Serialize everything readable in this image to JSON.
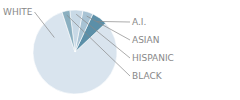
{
  "chart_data": {
    "type": "pie",
    "categories": [
      "WHITE",
      "A.I.",
      "ASIAN",
      "HISPANIC",
      "BLACK"
    ],
    "values": [
      82,
      6,
      4,
      5,
      3
    ],
    "colors": [
      "#d9e4ee",
      "#5b8fa8",
      "#a8c3d4",
      "#c8d9e6",
      "#8aafc0"
    ]
  }
}
